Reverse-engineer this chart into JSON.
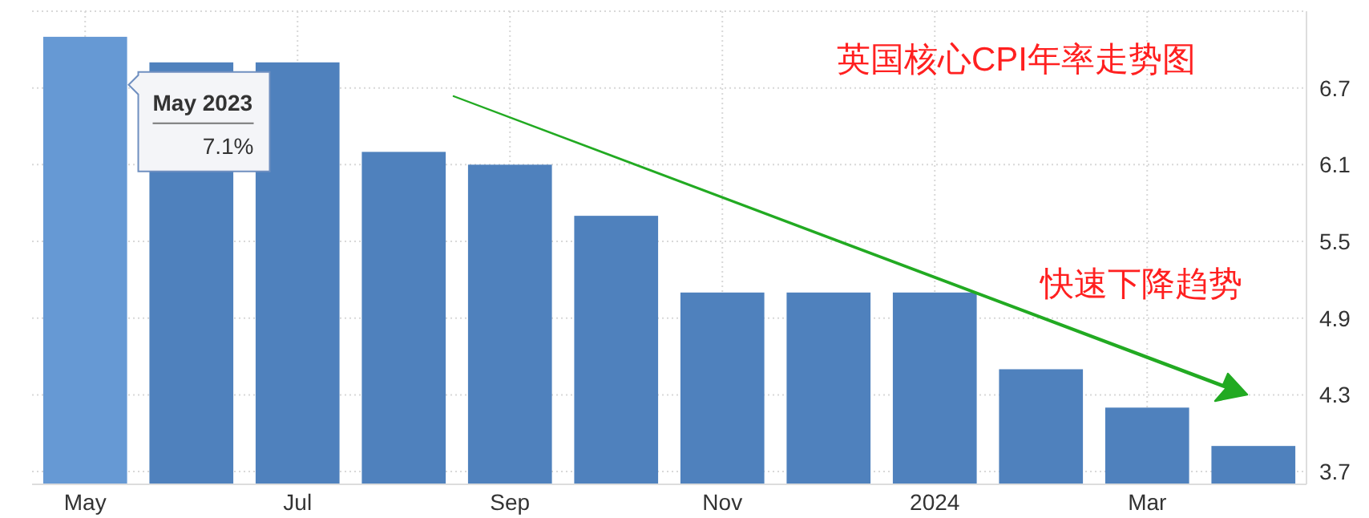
{
  "chart_data": {
    "type": "bar",
    "title": "英国核心CPI年率走势图",
    "categories": [
      "May",
      null,
      "Jul",
      null,
      "Sep",
      null,
      "Nov",
      null,
      "2024",
      null,
      "Mar",
      null
    ],
    "values": [
      7.1,
      6.9,
      6.9,
      6.2,
      6.1,
      5.7,
      5.1,
      5.1,
      5.1,
      4.5,
      4.2,
      3.9
    ],
    "colors": [
      "#6699d4",
      "#4f81bd",
      "#4f81bd",
      "#4f81bd",
      "#4f81bd",
      "#4f81bd",
      "#4f81bd",
      "#4f81bd",
      "#4f81bd",
      "#4f81bd",
      "#4f81bd",
      "#4f81bd"
    ],
    "ylim": [
      3.6,
      7.3
    ],
    "yticks": [
      3.7,
      4.3,
      4.9,
      5.5,
      6.1,
      6.7,
      {
        "value": 7.3,
        "label": null
      }
    ],
    "grid": true,
    "annotations": [
      "May 2023",
      "7.1%",
      "快速下降趋势"
    ]
  }
}
